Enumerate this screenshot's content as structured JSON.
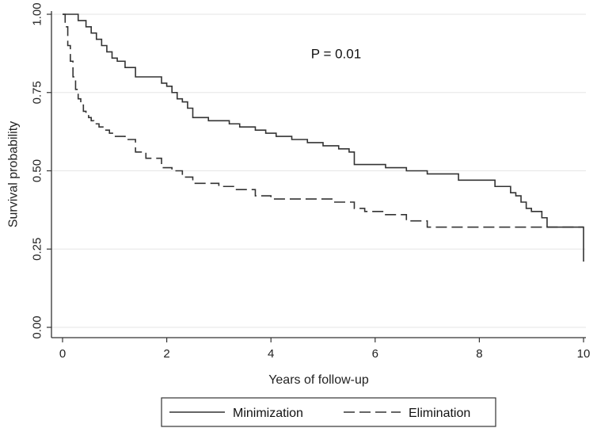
{
  "chart_data": {
    "type": "line",
    "step": true,
    "xlabel": "Years of follow-up",
    "ylabel": "Survival probability",
    "xlim": [
      0,
      10
    ],
    "ylim": [
      0,
      1
    ],
    "xticks": [
      0,
      2,
      4,
      6,
      8,
      10
    ],
    "xtick_labels": [
      "0",
      "2",
      "4",
      "6",
      "8",
      "10"
    ],
    "yticks": [
      0,
      0.25,
      0.5,
      0.75,
      1
    ],
    "ytick_labels": [
      "0.00",
      "0.25",
      "0.50",
      "0.75",
      "1.00"
    ],
    "grid": "horizontal",
    "legend_position": "bottom",
    "annotations": [
      {
        "text": "P = 0.01",
        "x": 5.25,
        "y": 0.86
      }
    ],
    "series": [
      {
        "name": "Minimization",
        "style": "solid",
        "color": "#333333",
        "x": [
          0,
          0.3,
          0.45,
          0.55,
          0.65,
          0.75,
          0.85,
          0.95,
          1.05,
          1.2,
          1.4,
          1.9,
          2.0,
          2.1,
          2.2,
          2.3,
          2.4,
          2.5,
          2.8,
          3.2,
          3.4,
          3.7,
          3.9,
          4.1,
          4.4,
          4.7,
          5.0,
          5.3,
          5.5,
          5.6,
          6.2,
          6.6,
          7.0,
          7.6,
          8.3,
          8.6,
          8.7,
          8.8,
          8.9,
          9.0,
          9.2,
          9.3,
          9.9,
          10.0
        ],
        "y": [
          1.0,
          0.98,
          0.96,
          0.94,
          0.92,
          0.9,
          0.88,
          0.86,
          0.85,
          0.83,
          0.8,
          0.78,
          0.77,
          0.75,
          0.73,
          0.72,
          0.7,
          0.67,
          0.66,
          0.65,
          0.64,
          0.63,
          0.62,
          0.61,
          0.6,
          0.59,
          0.58,
          0.57,
          0.56,
          0.52,
          0.51,
          0.5,
          0.49,
          0.47,
          0.45,
          0.43,
          0.42,
          0.4,
          0.38,
          0.37,
          0.35,
          0.32,
          0.32,
          0.21
        ]
      },
      {
        "name": "Elimination",
        "style": "dashed",
        "color": "#333333",
        "x": [
          0,
          0.05,
          0.1,
          0.15,
          0.2,
          0.25,
          0.3,
          0.35,
          0.4,
          0.45,
          0.5,
          0.55,
          0.6,
          0.7,
          0.8,
          0.9,
          1.0,
          1.2,
          1.4,
          1.6,
          1.9,
          2.1,
          2.3,
          2.5,
          3.0,
          3.3,
          3.7,
          4.0,
          5.2,
          5.6,
          5.8,
          6.2,
          6.6,
          7.0,
          10.0
        ],
        "y": [
          1.0,
          0.96,
          0.9,
          0.85,
          0.8,
          0.76,
          0.73,
          0.71,
          0.69,
          0.68,
          0.67,
          0.66,
          0.65,
          0.64,
          0.63,
          0.62,
          0.61,
          0.6,
          0.56,
          0.54,
          0.51,
          0.5,
          0.48,
          0.46,
          0.45,
          0.44,
          0.42,
          0.41,
          0.4,
          0.38,
          0.37,
          0.36,
          0.34,
          0.32,
          0.32
        ]
      }
    ]
  }
}
